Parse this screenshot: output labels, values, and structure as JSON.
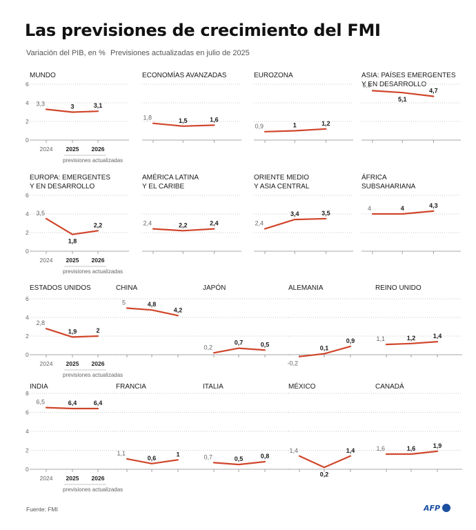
{
  "header": {
    "title": "Las previsiones de crecimiento del FMI",
    "subtitle_left": "Variación del PIB, en %",
    "subtitle_right": "Previsiones actualizadas en julio de 2025"
  },
  "footer": {
    "source": "Fuente: FMI",
    "logo_text": "AFP"
  },
  "colors": {
    "line": "#d0452a",
    "grid": "#b5b5b5",
    "axis": "#8a8a8a",
    "text": "#1a1a1a",
    "muted": "#666666",
    "logo_dot": "#1c4fa0"
  },
  "years": [
    "2024",
    "2025",
    "2026"
  ],
  "forecast_note": "previsiones actualizadas",
  "chart_data": [
    {
      "type": "line",
      "title": [
        "MUNDO"
      ],
      "categories": [
        "2024",
        "2025",
        "2026"
      ],
      "values": [
        3.3,
        3.0,
        3.1
      ],
      "labels": [
        "3,3",
        "3",
        "3,1"
      ],
      "ylim": [
        0,
        6
      ],
      "yticks": [
        "0",
        "2",
        "4",
        "6"
      ],
      "grid": true
    },
    {
      "type": "line",
      "title": [
        "ECONOMÍAS AVANZADAS"
      ],
      "categories": [
        "2024",
        "2025",
        "2026"
      ],
      "values": [
        1.8,
        1.5,
        1.6
      ],
      "labels": [
        "1,8",
        "1,5",
        "1,6"
      ],
      "ylim": [
        0,
        6
      ],
      "grid": true
    },
    {
      "type": "line",
      "title": [
        "EUROZONA"
      ],
      "categories": [
        "2024",
        "2025",
        "2026"
      ],
      "values": [
        0.9,
        1.0,
        1.2
      ],
      "labels": [
        "0,9",
        "1",
        "1,2"
      ],
      "ylim": [
        0,
        6
      ],
      "grid": true
    },
    {
      "type": "line",
      "title": [
        "ASIA: PAÍSES EMERGENTES",
        "Y EN DESARROLLO"
      ],
      "categories": [
        "2024",
        "2025",
        "2026"
      ],
      "values": [
        5.3,
        5.1,
        4.7
      ],
      "labels": [
        "5,3",
        "5,1",
        "4,7"
      ],
      "ylim": [
        0,
        6
      ],
      "grid": true
    },
    {
      "type": "line",
      "title": [
        "EUROPA: EMERGENTES",
        "Y EN DESARROLLO"
      ],
      "categories": [
        "2024",
        "2025",
        "2026"
      ],
      "values": [
        3.5,
        1.8,
        2.2
      ],
      "labels": [
        "3,5",
        "1,8",
        "2,2"
      ],
      "ylim": [
        0,
        6
      ],
      "yticks": [
        "0",
        "2",
        "4",
        "6"
      ],
      "grid": true
    },
    {
      "type": "line",
      "title": [
        "AMÉRICA LATINA",
        "Y EL CARIBE"
      ],
      "categories": [
        "2024",
        "2025",
        "2026"
      ],
      "values": [
        2.4,
        2.2,
        2.4
      ],
      "labels": [
        "2,4",
        "2,2",
        "2,4"
      ],
      "ylim": [
        0,
        6
      ],
      "grid": true
    },
    {
      "type": "line",
      "title": [
        "ORIENTE MEDIO",
        "Y ASIA CENTRAL"
      ],
      "categories": [
        "2024",
        "2025",
        "2026"
      ],
      "values": [
        2.4,
        3.4,
        3.5
      ],
      "labels": [
        "2,4",
        "3,4",
        "3,5"
      ],
      "ylim": [
        0,
        6
      ],
      "grid": true
    },
    {
      "type": "line",
      "title": [
        "ÁFRICA",
        "SUBSAHARIANA"
      ],
      "categories": [
        "2024",
        "2025",
        "2026"
      ],
      "values": [
        4.0,
        4.0,
        4.3
      ],
      "labels": [
        "4",
        "4",
        "4,3"
      ],
      "ylim": [
        0,
        6
      ],
      "grid": true
    },
    {
      "type": "line",
      "title": [
        "ESTADOS UNIDOS"
      ],
      "categories": [
        "2024",
        "2025",
        "2026"
      ],
      "values": [
        2.8,
        1.9,
        2.0
      ],
      "labels": [
        "2,8",
        "1,9",
        "2"
      ],
      "ylim": [
        0,
        6
      ],
      "yticks": [
        "0",
        "2",
        "4",
        "6"
      ],
      "grid": true
    },
    {
      "type": "line",
      "title": [
        "CHINA"
      ],
      "categories": [
        "2024",
        "2025",
        "2026"
      ],
      "values": [
        5.0,
        4.8,
        4.2
      ],
      "labels": [
        "5",
        "4,8",
        "4,2"
      ],
      "ylim": [
        0,
        6
      ],
      "grid": true
    },
    {
      "type": "line",
      "title": [
        "JAPÓN"
      ],
      "categories": [
        "2024",
        "2025",
        "2026"
      ],
      "values": [
        0.2,
        0.7,
        0.5
      ],
      "labels": [
        "0,2",
        "0,7",
        "0,5"
      ],
      "ylim": [
        0,
        6
      ],
      "grid": true
    },
    {
      "type": "line",
      "title": [
        "ALEMANIA"
      ],
      "categories": [
        "2024",
        "2025",
        "2026"
      ],
      "values": [
        -0.2,
        0.1,
        0.9
      ],
      "labels": [
        "-0,2",
        "0,1",
        "0,9"
      ],
      "ylim": [
        0,
        6
      ],
      "grid": true
    },
    {
      "type": "line",
      "title": [
        "REINO UNIDO"
      ],
      "categories": [
        "2024",
        "2025",
        "2026"
      ],
      "values": [
        1.1,
        1.2,
        1.4
      ],
      "labels": [
        "1,1",
        "1,2",
        "1,4"
      ],
      "ylim": [
        0,
        6
      ],
      "grid": true
    },
    {
      "type": "line",
      "title": [
        "INDIA"
      ],
      "categories": [
        "2024",
        "2025",
        "2026"
      ],
      "values": [
        6.5,
        6.4,
        6.4
      ],
      "labels": [
        "6,5",
        "6,4",
        "6,4"
      ],
      "ylim": [
        0,
        8
      ],
      "yticks": [
        "0",
        "2",
        "4",
        "6",
        "8"
      ],
      "grid": true
    },
    {
      "type": "line",
      "title": [
        "FRANCIA"
      ],
      "categories": [
        "2024",
        "2025",
        "2026"
      ],
      "values": [
        1.1,
        0.6,
        1.0
      ],
      "labels": [
        "1,1",
        "0,6",
        "1"
      ],
      "ylim": [
        0,
        8
      ],
      "grid": true
    },
    {
      "type": "line",
      "title": [
        "ITALIA"
      ],
      "categories": [
        "2024",
        "2025",
        "2026"
      ],
      "values": [
        0.7,
        0.5,
        0.8
      ],
      "labels": [
        "0,7",
        "0,5",
        "0,8"
      ],
      "ylim": [
        0,
        8
      ],
      "grid": true
    },
    {
      "type": "line",
      "title": [
        "MÉXICO"
      ],
      "categories": [
        "2024",
        "2025",
        "2026"
      ],
      "values": [
        1.4,
        0.2,
        1.4
      ],
      "labels": [
        "1,4",
        "0,2",
        "1,4"
      ],
      "ylim": [
        0,
        8
      ],
      "grid": true
    },
    {
      "type": "line",
      "title": [
        "CANADÁ"
      ],
      "categories": [
        "2024",
        "2025",
        "2026"
      ],
      "values": [
        1.6,
        1.6,
        1.9
      ],
      "labels": [
        "1,6",
        "1,6",
        "1,9"
      ],
      "ylim": [
        0,
        8
      ],
      "grid": true
    }
  ]
}
